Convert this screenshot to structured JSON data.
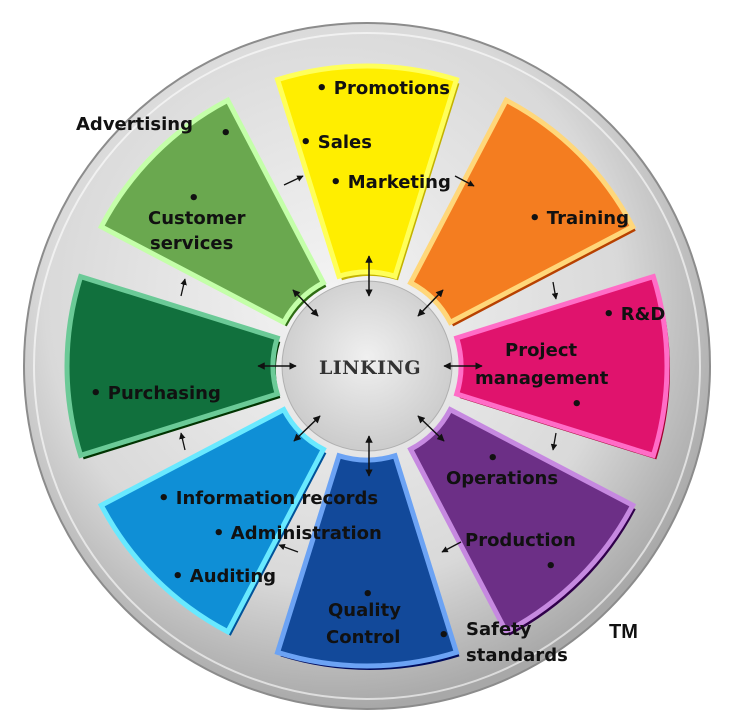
{
  "center": {
    "label": "LINKING"
  },
  "trademark": "TM",
  "segments": [
    {
      "id": "sales",
      "color": "#ffee00",
      "labels": [
        "• Promotions",
        "• Sales",
        "• Marketing"
      ]
    },
    {
      "id": "training",
      "color": "#f47d20",
      "labels": [
        "• Training"
      ]
    },
    {
      "id": "project-management",
      "color": "#e0136d",
      "labels": [
        "• R&D",
        "Project",
        "management",
        "•"
      ]
    },
    {
      "id": "production",
      "color": "#6c2f86",
      "labels": [
        "•",
        "Operations",
        "Production",
        "•"
      ]
    },
    {
      "id": "quality-control",
      "color": "#12499a",
      "labels": [
        "•",
        "Quality",
        "Control",
        "•",
        "Safety",
        "standards"
      ]
    },
    {
      "id": "administration",
      "color": "#0f8fd6",
      "labels": [
        "• Information records",
        "• Administration",
        "• Auditing"
      ]
    },
    {
      "id": "purchasing",
      "color": "#11703d",
      "labels": [
        "• Purchasing"
      ]
    },
    {
      "id": "customer-services",
      "color": "#6aa84f",
      "labels": [
        "Advertising",
        "•",
        "•",
        "Customer",
        "services"
      ]
    }
  ]
}
